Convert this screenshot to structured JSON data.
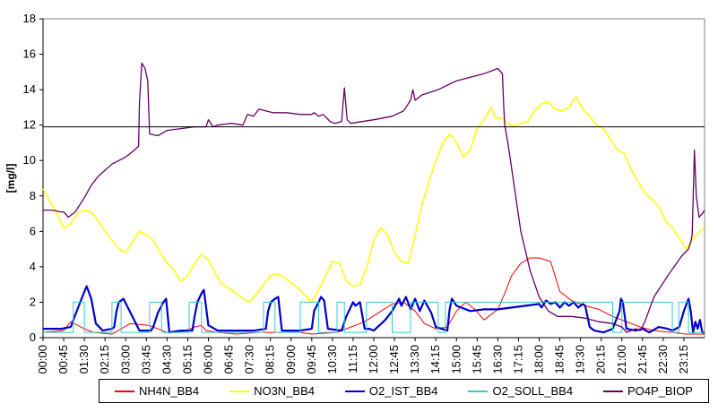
{
  "chart_data": {
    "type": "line",
    "ylabel": "[mg/l]",
    "xlabel": "",
    "ylim": [
      0,
      18
    ],
    "yticks": [
      0,
      2,
      4,
      6,
      8,
      10,
      12,
      14,
      16,
      18
    ],
    "xlim": [
      0,
      1440
    ],
    "xtick_labels": [
      "00:00",
      "00:45",
      "01:30",
      "02:15",
      "03:00",
      "03:45",
      "04:30",
      "05:15",
      "06:00",
      "06:45",
      "07:30",
      "08:15",
      "09:00",
      "09:45",
      "10:30",
      "11:15",
      "12:00",
      "12:45",
      "13:30",
      "14:15",
      "15:00",
      "15:45",
      "16:30",
      "17:15",
      "18:00",
      "18:45",
      "19:30",
      "20:15",
      "21:00",
      "21:45",
      "22:30",
      "23:15"
    ],
    "xtick_minutes": [
      0,
      45,
      90,
      135,
      180,
      225,
      270,
      315,
      360,
      405,
      450,
      495,
      540,
      585,
      630,
      675,
      720,
      765,
      810,
      855,
      900,
      945,
      990,
      1035,
      1080,
      1125,
      1170,
      1215,
      1260,
      1305,
      1350,
      1395
    ],
    "grid": false,
    "reference_line": {
      "y": 11.9,
      "color": "#000000"
    },
    "legend_position": "bottom",
    "series": [
      {
        "name": "NH4N_BB4",
        "color": "#ff0000",
        "width": 1,
        "x": [
          0,
          45,
          60,
          90,
          110,
          150,
          190,
          230,
          270,
          300,
          330,
          345,
          355,
          380,
          420,
          470,
          500,
          530,
          560,
          585,
          640,
          660,
          680,
          700,
          730,
          760,
          785,
          810,
          830,
          855,
          880,
          900,
          920,
          940,
          960,
          990,
          1005,
          1020,
          1040,
          1060,
          1080,
          1105,
          1125,
          1150,
          1180,
          1210,
          1240,
          1270,
          1300,
          1330,
          1370,
          1400,
          1430,
          1440
        ],
        "y": [
          0.3,
          0.4,
          0.9,
          0.5,
          0.3,
          0.2,
          0.8,
          0.7,
          0.3,
          0.3,
          0.6,
          0.7,
          0.4,
          0.3,
          0.2,
          0.3,
          0.3,
          0.3,
          0.3,
          0.2,
          0.3,
          0.5,
          0.7,
          0.9,
          1.4,
          1.9,
          2.0,
          1.5,
          0.8,
          0.5,
          0.6,
          1.5,
          2.0,
          1.6,
          1.0,
          1.6,
          2.5,
          3.5,
          4.2,
          4.5,
          4.5,
          4.3,
          2.6,
          2.1,
          1.8,
          1.6,
          1.2,
          0.9,
          0.6,
          0.4,
          0.3,
          0.2,
          0.2,
          0.2
        ]
      },
      {
        "name": "NO3N_BB4",
        "color": "#ffff00",
        "width": 1.5,
        "x": [
          0,
          15,
          30,
          45,
          60,
          75,
          90,
          105,
          120,
          135,
          150,
          165,
          180,
          195,
          210,
          225,
          240,
          255,
          270,
          285,
          300,
          315,
          330,
          345,
          360,
          375,
          390,
          405,
          420,
          435,
          450,
          465,
          480,
          495,
          510,
          525,
          540,
          555,
          570,
          585,
          600,
          615,
          630,
          645,
          660,
          675,
          690,
          705,
          720,
          735,
          750,
          765,
          780,
          795,
          810,
          825,
          840,
          855,
          870,
          885,
          900,
          915,
          930,
          945,
          960,
          975,
          985,
          1000,
          1010,
          1020,
          1030,
          1040,
          1055,
          1070,
          1085,
          1100,
          1115,
          1130,
          1145,
          1160,
          1175,
          1190,
          1205,
          1220,
          1235,
          1250,
          1265,
          1280,
          1295,
          1310,
          1325,
          1340,
          1355,
          1370,
          1385,
          1400,
          1415,
          1430,
          1440
        ],
        "y": [
          8.4,
          7.7,
          7.0,
          6.2,
          6.4,
          7.0,
          7.2,
          7.1,
          6.6,
          6.0,
          5.5,
          5.0,
          4.8,
          5.4,
          6.0,
          5.8,
          5.5,
          4.8,
          4.2,
          3.8,
          3.2,
          3.5,
          4.2,
          4.7,
          4.4,
          3.6,
          3.0,
          2.8,
          2.5,
          2.2,
          2.0,
          2.5,
          3.0,
          3.5,
          3.6,
          3.4,
          3.1,
          2.8,
          2.4,
          2.0,
          2.7,
          3.5,
          4.3,
          4.2,
          3.2,
          2.9,
          3.0,
          4.0,
          5.5,
          6.2,
          5.8,
          4.8,
          4.3,
          4.2,
          5.8,
          7.5,
          8.8,
          10.0,
          11.0,
          11.5,
          11.0,
          10.2,
          10.6,
          11.8,
          12.3,
          13.0,
          12.4,
          12.4,
          12.1,
          12.0,
          12.0,
          12.1,
          12.2,
          12.8,
          13.2,
          13.3,
          12.9,
          12.8,
          13.0,
          13.6,
          12.9,
          12.5,
          12.0,
          11.8,
          11.2,
          10.6,
          10.4,
          9.5,
          8.8,
          8.2,
          7.8,
          7.4,
          6.6,
          6.2,
          5.6,
          5.0,
          5.6,
          6.0,
          6.2
        ]
      },
      {
        "name": "O2_IST_BB4",
        "color": "#0000cc",
        "width": 2.2,
        "x": [
          0,
          40,
          60,
          75,
          90,
          95,
          105,
          115,
          130,
          150,
          155,
          160,
          165,
          175,
          210,
          235,
          240,
          250,
          262,
          268,
          275,
          300,
          325,
          330,
          336,
          345,
          350,
          360,
          380,
          420,
          460,
          485,
          490,
          496,
          505,
          512,
          520,
          560,
          585,
          590,
          600,
          605,
          612,
          620,
          650,
          660,
          675,
          680,
          690,
          700,
          710,
          720,
          745,
          760,
          775,
          780,
          790,
          800,
          810,
          820,
          830,
          845,
          855,
          880,
          885,
          890,
          900,
          930,
          960,
          990,
          1020,
          1050,
          1080,
          1085,
          1095,
          1105,
          1115,
          1125,
          1135,
          1145,
          1155,
          1165,
          1175,
          1180,
          1190,
          1200,
          1220,
          1240,
          1255,
          1258,
          1262,
          1270,
          1290,
          1305,
          1320,
          1340,
          1360,
          1370,
          1385,
          1395,
          1405,
          1410,
          1415,
          1420,
          1425,
          1430,
          1435,
          1440
        ],
        "y": [
          0.5,
          0.5,
          0.6,
          1.6,
          2.6,
          2.9,
          2.2,
          0.8,
          0.4,
          0.5,
          0.6,
          1.5,
          2.0,
          2.2,
          0.4,
          0.4,
          0.6,
          1.4,
          2.0,
          2.2,
          0.3,
          0.4,
          0.4,
          1.2,
          2.0,
          2.5,
          2.7,
          0.7,
          0.4,
          0.4,
          0.4,
          0.5,
          1.5,
          2.0,
          2.2,
          2.3,
          0.4,
          0.4,
          0.5,
          1.5,
          2.0,
          2.3,
          2.1,
          0.5,
          0.4,
          1.2,
          2.0,
          1.8,
          2.0,
          0.5,
          0.5,
          0.4,
          1.0,
          1.5,
          2.2,
          1.8,
          2.3,
          1.6,
          2.2,
          1.5,
          2.1,
          1.4,
          0.6,
          0.4,
          1.6,
          2.2,
          1.8,
          1.5,
          1.6,
          1.6,
          1.7,
          1.8,
          1.9,
          1.7,
          2.1,
          1.9,
          2.0,
          1.7,
          2.0,
          1.8,
          2.0,
          1.7,
          1.9,
          1.8,
          0.6,
          0.4,
          0.3,
          0.5,
          1.5,
          2.2,
          2.0,
          0.5,
          0.4,
          0.5,
          0.3,
          0.6,
          0.5,
          0.4,
          0.6,
          1.5,
          2.2,
          1.5,
          0.3,
          0.9,
          0.5,
          1.0,
          0.3,
          0.3
        ]
      },
      {
        "name": "O2_SOLL_BB4",
        "color": "#33cccc",
        "width": 1,
        "x": [
          0,
          66,
          66,
          90,
          90,
          150,
          150,
          170,
          170,
          232,
          232,
          258,
          258,
          318,
          318,
          345,
          345,
          390,
          390,
          420,
          420,
          480,
          480,
          505,
          505,
          540,
          540,
          560,
          560,
          600,
          600,
          615,
          615,
          640,
          640,
          656,
          656,
          700,
          700,
          704,
          704,
          760,
          760,
          800,
          800,
          860,
          860,
          876,
          876,
          1240,
          1240,
          1260,
          1260,
          1370,
          1370,
          1384,
          1384,
          1405,
          1405,
          1418,
          1418,
          1440
        ],
        "y": [
          0.3,
          0.3,
          2.0,
          2.0,
          0.3,
          0.3,
          2.0,
          2.0,
          0.3,
          0.3,
          2.0,
          2.0,
          0.3,
          0.3,
          2.0,
          2.0,
          0.3,
          0.3,
          0.3,
          0.3,
          0.3,
          0.3,
          2.0,
          2.0,
          0.3,
          0.3,
          0.3,
          0.3,
          2.0,
          2.0,
          0.3,
          0.3,
          0.3,
          0.3,
          2.0,
          2.0,
          0.3,
          0.3,
          0.3,
          0.3,
          2.0,
          2.0,
          0.3,
          0.3,
          2.0,
          2.0,
          0.3,
          0.3,
          2.0,
          2.0,
          0.3,
          0.3,
          2.0,
          2.0,
          0.3,
          0.3,
          2.0,
          2.0,
          0.3,
          0.3,
          0.3,
          0.3
        ]
      },
      {
        "name": "PO4P_BIOP",
        "color": "#660066",
        "width": 1.3,
        "x": [
          0,
          20,
          40,
          45,
          55,
          70,
          90,
          105,
          120,
          150,
          180,
          195,
          208,
          210,
          215,
          222,
          228,
          232,
          250,
          270,
          300,
          330,
          355,
          360,
          370,
          380,
          410,
          435,
          445,
          458,
          470,
          500,
          530,
          560,
          585,
          590,
          600,
          610,
          625,
          635,
          650,
          656,
          662,
          670,
          720,
          760,
          785,
          800,
          805,
          810,
          825,
          860,
          900,
          930,
          960,
          990,
          1000,
          1003,
          1005,
          1012,
          1040,
          1060,
          1080,
          1100,
          1120,
          1150,
          1180,
          1210,
          1240,
          1260,
          1270,
          1280,
          1290,
          1300,
          1310,
          1330,
          1360,
          1390,
          1405,
          1410,
          1413,
          1418,
          1422,
          1428,
          1435,
          1440
        ],
        "y": [
          7.2,
          7.2,
          7.1,
          7.1,
          6.8,
          7.1,
          7.9,
          8.6,
          9.1,
          9.8,
          10.2,
          10.5,
          10.8,
          13.3,
          15.5,
          15.2,
          14.5,
          11.5,
          11.4,
          11.7,
          11.8,
          11.9,
          11.9,
          12.3,
          11.9,
          12.0,
          12.1,
          12.0,
          12.6,
          12.5,
          12.9,
          12.7,
          12.7,
          12.6,
          12.6,
          12.7,
          12.5,
          12.6,
          12.2,
          12.1,
          12.2,
          14.1,
          12.3,
          12.1,
          12.3,
          12.5,
          12.8,
          13.4,
          14.0,
          13.4,
          13.7,
          14.0,
          14.5,
          14.7,
          14.9,
          15.2,
          14.9,
          13.0,
          12.0,
          11.0,
          6.0,
          3.8,
          2.3,
          1.5,
          1.2,
          1.2,
          1.1,
          0.9,
          0.8,
          0.6,
          0.3,
          0.4,
          0.5,
          0.4,
          0.9,
          2.3,
          3.5,
          4.6,
          5.0,
          5.4,
          5.8,
          10.6,
          8.0,
          6.8,
          7.0,
          7.2
        ]
      }
    ]
  }
}
